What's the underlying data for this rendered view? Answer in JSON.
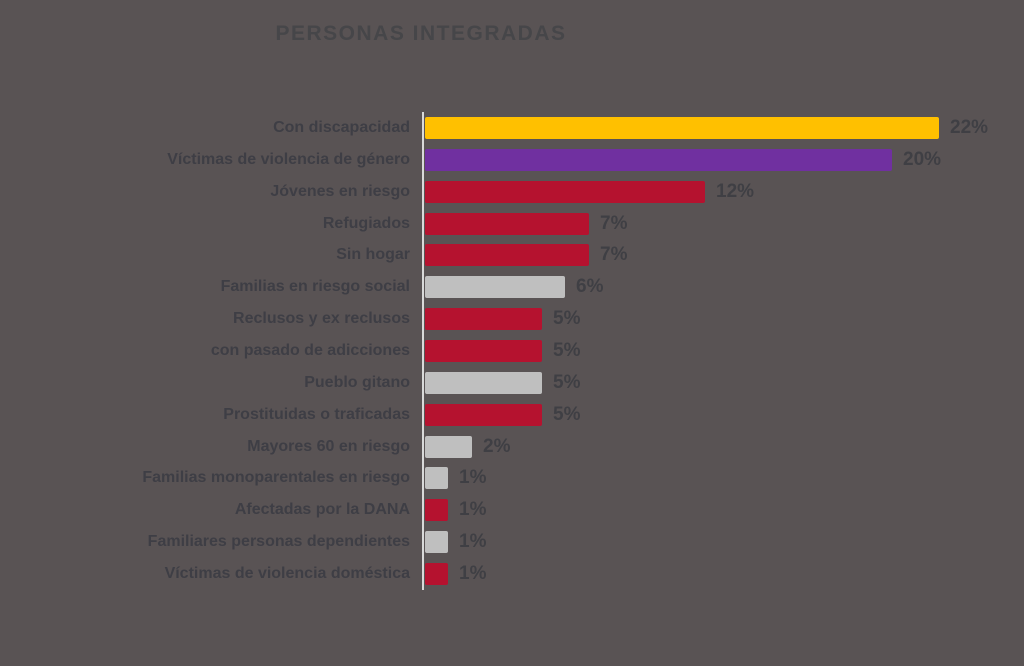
{
  "colors": {
    "background": "#595354",
    "title_text": "#464649",
    "label_text": "#3E3E45",
    "value_text": "#3F3F44",
    "axis": "#D9D9D9",
    "gold": "#FFC000",
    "purple": "#7030A0",
    "crimson": "#B5122F",
    "gray": "#BFBFBF"
  },
  "chart_data": {
    "type": "bar",
    "orientation": "horizontal",
    "title": "PERSONAS INTEGRADAS",
    "categories": [
      "Con discapacidad",
      "Víctimas de violencia de género",
      "Jóvenes en riesgo",
      "Refugiados",
      "Sin hogar",
      "Familias en riesgo social",
      "Reclusos y ex reclusos",
      "con pasado de adicciones",
      "Pueblo gitano",
      "Prostituidas o traficadas",
      "Mayores 60 en riesgo",
      "Familias monoparentales en riesgo",
      "Afectadas por la DANA",
      "Familiares personas dependientes",
      "Víctimas de violencia doméstica"
    ],
    "values": [
      22,
      20,
      12,
      7,
      7,
      6,
      5,
      5,
      5,
      5,
      2,
      1,
      1,
      1,
      1
    ],
    "value_labels": [
      "22%",
      "20%",
      "12%",
      "7%",
      "7%",
      "6%",
      "5%",
      "5%",
      "5%",
      "5%",
      "2%",
      "1%",
      "1%",
      "1%",
      "1%"
    ],
    "bar_colors": [
      "gold",
      "purple",
      "crimson",
      "crimson",
      "crimson",
      "gray",
      "crimson",
      "crimson",
      "gray",
      "crimson",
      "gray",
      "gray",
      "crimson",
      "gray",
      "crimson"
    ],
    "xlim": [
      0,
      22
    ],
    "grid": false,
    "legend": false
  }
}
